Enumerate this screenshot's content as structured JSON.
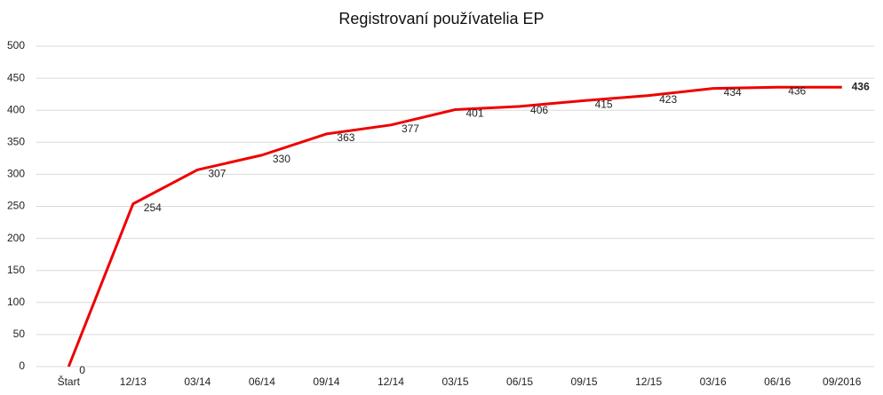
{
  "chart_data": {
    "type": "line",
    "title": "Registrovaní používatelia EP",
    "categories": [
      "Štart",
      "12/13",
      "03/14",
      "06/14",
      "09/14",
      "12/14",
      "03/15",
      "06/15",
      "09/15",
      "12/15",
      "03/16",
      "06/16",
      "09/2016"
    ],
    "series": [
      {
        "name": "Registrovaní používatelia EP",
        "color": "#ee0000",
        "values": [
          0,
          254,
          307,
          330,
          363,
          377,
          401,
          406,
          415,
          423,
          434,
          436,
          436
        ]
      }
    ],
    "ylim": [
      0,
      500
    ],
    "yticks": [
      0,
      50,
      100,
      150,
      200,
      250,
      300,
      350,
      400,
      450,
      500
    ],
    "grid": true
  }
}
